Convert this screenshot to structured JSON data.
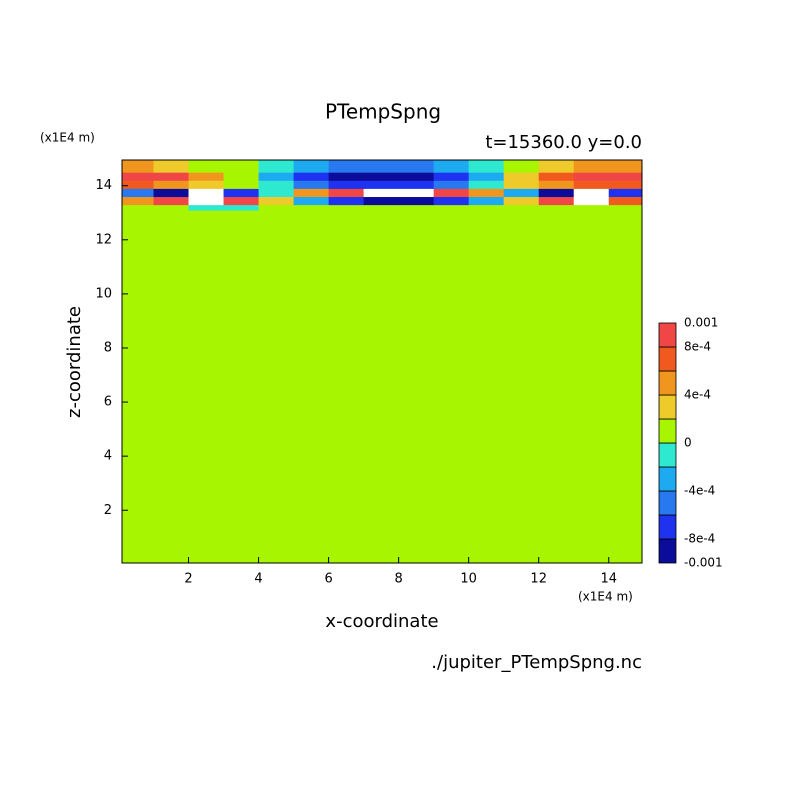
{
  "chart_data": {
    "type": "contour",
    "title": "PTempSpng",
    "subtitle": "t=15360.0 y=0.0",
    "y_unit": "(x1E4 m)",
    "x_unit": "(x1E4 m)",
    "xlabel": "x-coordinate",
    "ylabel": "z-coordinate",
    "source": "./jupiter_PTempSpng.nc",
    "xlim": [
      0.1,
      14.95
    ],
    "ylim": [
      0.05,
      14.95
    ],
    "xticks": [
      2,
      4,
      6,
      8,
      10,
      12,
      14
    ],
    "yticks": [
      2,
      4,
      6,
      8,
      10,
      12,
      14
    ],
    "x_edges": [
      0.1,
      1,
      2,
      3,
      4,
      5,
      6,
      7,
      8,
      9,
      10,
      11,
      12,
      13,
      14,
      14.95
    ],
    "z_edges": [
      0.05,
      13.1,
      13.3,
      13.6,
      13.9,
      14.2,
      14.5,
      14.95
    ],
    "values": [
      [
        5e-05,
        5e-05,
        5e-05,
        5e-05,
        5e-05,
        5e-05,
        5e-05,
        5e-05,
        5e-05,
        5e-05,
        5e-05,
        5e-05,
        5e-05,
        5e-05,
        5e-05
      ],
      [
        5e-05,
        5e-05,
        -0.0001,
        -0.0001,
        5e-05,
        5e-05,
        5e-05,
        5e-05,
        5e-05,
        5e-05,
        5e-05,
        5e-05,
        5e-05,
        5e-05,
        5e-05
      ],
      [
        0.0005,
        0.0009,
        0.0011,
        0.0009,
        0.0003,
        -0.0003,
        -0.0007,
        -0.0009,
        -0.0009,
        -0.0007,
        -0.0003,
        0.0003,
        0.0009,
        0.0011,
        0.0007
      ],
      [
        -0.0005,
        -0.0009,
        -0.0011,
        -0.0007,
        -0.0001,
        0.0005,
        0.0009,
        0.0011,
        0.0011,
        0.0009,
        0.0005,
        -0.0003,
        -0.0009,
        -0.0011,
        -0.0007
      ],
      [
        0.0007,
        0.0005,
        0.0003,
        0.0001,
        -0.0001,
        -0.0005,
        -0.0007,
        -0.0007,
        -0.0007,
        -0.0005,
        -0.0001,
        0.0003,
        0.0005,
        0.0007,
        0.0007
      ],
      [
        0.0009,
        0.0009,
        0.0005,
        0.0001,
        -0.0003,
        -0.0007,
        -0.0009,
        -0.0009,
        -0.0009,
        -0.0007,
        -0.0003,
        0.0003,
        0.0007,
        0.0009,
        0.0009
      ],
      [
        0.0005,
        0.0003,
        0.0001,
        0.0001,
        -0.0001,
        -0.0003,
        -0.0005,
        -0.0005,
        -0.0005,
        -0.0003,
        -0.0001,
        0.0001,
        0.0003,
        0.0005,
        0.0005
      ]
    ],
    "levels": [
      -0.001,
      -0.0008,
      -0.0006,
      -0.0004,
      -0.0002,
      0,
      0.0002,
      0.0004,
      0.0006,
      0.0008,
      0.001
    ],
    "colors": [
      "#0c0c9a",
      "#1e32f0",
      "#2878f0",
      "#1eaaf0",
      "#2ee8d0",
      "#a8f500",
      "#eecb2a",
      "#f0961e",
      "#f05a1e",
      "#f04646"
    ],
    "colorbar_ticks": [
      0.001,
      {
        "value": 0.0008,
        "label": "8e-4"
      },
      {
        "value": 0.0004,
        "label": "4e-4"
      },
      0,
      {
        "value": -0.0004,
        "label": "-4e-4"
      },
      {
        "value": -0.0008,
        "label": "-8e-4"
      },
      -0.001
    ]
  }
}
